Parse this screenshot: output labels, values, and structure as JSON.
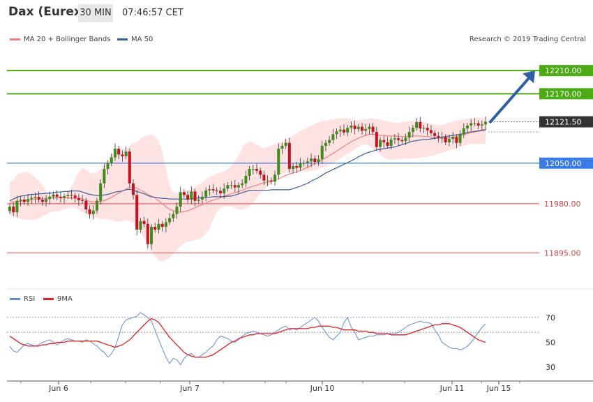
{
  "header": {
    "title": "Dax (Eurex)",
    "timeframe": "30 MIN",
    "time": "07:46:57 CET"
  },
  "legend": {
    "bollinger": {
      "label": "MA 20 + Bollinger Bands",
      "color": "#f08080"
    },
    "ma50": {
      "label": "MA 50",
      "color": "#3a5f9a"
    }
  },
  "copyright": "Research © 2019 Trading Central",
  "rsi_legend": {
    "rsi": "RSI",
    "ma": "9MA"
  },
  "colors": {
    "green": "#4caa14",
    "blue": "#3b7be8",
    "red": "#f07070",
    "candle_up": "#3d8c1c",
    "candle_down": "#c81020",
    "band": "#ffe2e2",
    "rsi": "#6688dd",
    "rsi_ma": "#e02020"
  },
  "chart_data": [
    {
      "type": "candlestick",
      "x_labels": [
        "Jun 6",
        "Jun 7",
        "Jun 10",
        "Jun 11",
        "Jun 15"
      ],
      "ylim": [
        11835,
        12250
      ],
      "levels": [
        {
          "value": 12210,
          "label": "12210.00",
          "color": "#4caa14"
        },
        {
          "value": 12170,
          "label": "12170.00",
          "color": "#4caa14"
        },
        {
          "value": 12050,
          "label": "12050.00",
          "color": "#3b7be8"
        },
        {
          "value": 11980,
          "label": "11980.00",
          "color": "#f07070"
        },
        {
          "value": 11895,
          "label": "11895.00",
          "color": "#f07070"
        }
      ],
      "last_price": {
        "value": 12121.5,
        "label": "12121.50"
      },
      "projection": {
        "from": 12121.5,
        "to": 12210
      },
      "close": [
        11975,
        11965,
        11985,
        11987,
        11983,
        11988,
        11990,
        11992,
        11987,
        11983,
        11988,
        11992,
        11996,
        11992,
        11990,
        11993,
        11995,
        11994,
        11990,
        11986,
        11985,
        11970,
        11962,
        11968,
        11985,
        12015,
        12040,
        12050,
        12060,
        12075,
        12065,
        12062,
        12070,
        12015,
        11995,
        11935,
        11950,
        11945,
        11910,
        11940,
        11935,
        11945,
        11940,
        11948,
        11955,
        11962,
        11975,
        12000,
        11995,
        11987,
        12001,
        11985,
        11987,
        11992,
        12003,
        12005,
        12003,
        12002,
        11998,
        12006,
        12012,
        12012,
        12008,
        12012,
        12015,
        12028,
        12040,
        12040,
        12037,
        12030,
        12020,
        12020,
        12018,
        12030,
        12075,
        12080,
        12085,
        12040,
        12045,
        12042,
        12050,
        12050,
        12053,
        12058,
        12052,
        12057,
        12080,
        12085,
        12090,
        12100,
        12105,
        12108,
        12103,
        12111,
        12115,
        12109,
        12113,
        12106,
        12109,
        12113,
        12104,
        12078,
        12090,
        12086,
        12080,
        12091,
        12093,
        12090,
        12088,
        12094,
        12104,
        12111,
        12121,
        12110,
        12111,
        12107,
        12102,
        12097,
        12094,
        12095,
        12086,
        12092,
        12095,
        12085,
        12100,
        12110,
        12115,
        12119,
        12119,
        12115,
        12117,
        12121.5
      ],
      "ma20_upper": [
        12017,
        12020,
        12031,
        12033,
        12035,
        12034,
        12031,
        12025,
        12020,
        12012,
        12002,
        11993,
        11995,
        11993,
        11992,
        11994,
        11999,
        12009,
        12021,
        12034,
        12042,
        12039,
        12034,
        12032,
        12034,
        12040,
        12048,
        12056,
        12065,
        12070,
        12073,
        12075,
        12076,
        12080,
        12084,
        12087,
        12092,
        12096,
        12098,
        12100,
        12097,
        12088,
        12070,
        12040,
        12010,
        12001,
        11997,
        11999,
        12001,
        12003,
        12005,
        12009,
        12013,
        12017,
        12021,
        12025,
        12029,
        12032,
        12034,
        12036,
        12040,
        12046,
        12054,
        12064,
        12076,
        12084,
        12088,
        12086,
        12082,
        12078,
        12076,
        12078,
        12080,
        12083,
        12086,
        12088,
        12091,
        12094,
        12098,
        12102,
        12106,
        12109,
        12112,
        12115,
        12118,
        12121,
        12122,
        12123,
        12125,
        12126,
        12127,
        12128,
        12128,
        12128,
        12126,
        12124,
        12124,
        12125,
        12126,
        12127,
        12127,
        12126,
        12125,
        12124,
        12122,
        12121,
        12120,
        12120,
        12121,
        12122,
        12123,
        12123,
        12123,
        12122,
        12121,
        12120,
        12118,
        12117,
        12116,
        12116,
        12118,
        12120,
        12122,
        12123,
        12125,
        12126,
        12127,
        12128,
        12128,
        12128,
        12128,
        12128
      ],
      "ma20_lower": [
        11960,
        11958,
        11955,
        11954,
        11953,
        11952,
        11952,
        11953,
        11955,
        11958,
        11961,
        11965,
        11966,
        11967,
        11968,
        11970,
        11972,
        11975,
        11973,
        11970,
        11965,
        11962,
        11959,
        11957,
        11955,
        11954,
        11953,
        11953,
        11951,
        11949,
        11949,
        11950,
        11951,
        11950,
        11947,
        11940,
        11930,
        11920,
        11910,
        11898,
        11890,
        11882,
        11880,
        11882,
        11887,
        11893,
        11900,
        11906,
        11912,
        11914,
        11915,
        11917,
        11919,
        11922,
        11928,
        11937,
        11952,
        11965,
        11973,
        11975,
        11975,
        11975,
        11973,
        11970,
        11970,
        11972,
        11976,
        11981,
        11990,
        11998,
        12004,
        12010,
        12015,
        12020,
        12028,
        12031,
        12033,
        12034,
        12035,
        12036,
        12036,
        12036,
        12036,
        12037,
        12038,
        12040,
        12042,
        12044,
        12047,
        12050,
        12054,
        12058,
        12062,
        12066,
        12070,
        12074,
        12078,
        12082,
        12082,
        12080,
        12075,
        12070,
        12065,
        12060,
        12057,
        12056,
        12056,
        12057,
        12057,
        12058,
        12058,
        12058,
        12058,
        12059,
        12060,
        12061,
        12062,
        12064,
        12066,
        12068,
        12070,
        12072,
        12074,
        12076,
        12078,
        12080,
        12082,
        12083,
        12083,
        12083,
        12083,
        12083
      ],
      "ma50": [
        11985,
        11988,
        11991,
        11993,
        11994,
        11995,
        11996,
        11996,
        11997,
        11997,
        11998,
        11998,
        11999,
        12000,
        12000,
        12001,
        12001,
        12002,
        12002,
        12002,
        12000,
        11998,
        11996,
        11995,
        11994,
        11994,
        11995,
        11996,
        11998,
        12000,
        12001,
        12002,
        12004,
        12005,
        12003,
        12001,
        11999,
        11997,
        11994,
        11992,
        11991,
        11990,
        11989,
        11989,
        11988,
        11988,
        11988,
        11988,
        11988,
        11988,
        11988,
        11989,
        11990,
        11990,
        11991,
        11991,
        11992,
        11992,
        11992,
        11992,
        11993,
        11993,
        11995,
        11997,
        11999,
        12001,
        12003,
        12003,
        12003,
        12003,
        12003,
        12003,
        12004,
        12004,
        12004,
        12004,
        12004,
        12004,
        12006,
        12008,
        12010,
        12013,
        12015,
        12019,
        12022,
        12025,
        12029,
        12033,
        12036,
        12039,
        12042,
        12045,
        12048,
        12051,
        12054,
        12057,
        12061,
        12064,
        12067,
        12069,
        12071,
        12073,
        12074,
        12075,
        12076,
        12077,
        12078,
        12080,
        12082,
        12084,
        12086,
        12088,
        12089,
        12090,
        12091,
        12091,
        12092,
        12093,
        12094,
        12095,
        12096,
        12097,
        12098,
        12099,
        12100,
        12101,
        12103,
        12104,
        12105,
        12106,
        12107,
        12108
      ],
      "ma20": [
        11983,
        11983,
        11984,
        11984,
        11985,
        11986,
        11987,
        11988,
        11988,
        11989,
        11989,
        11990,
        11990,
        11990,
        11990,
        11990,
        11990,
        11990,
        11989,
        11989,
        11988,
        11986,
        11984,
        11983,
        11983,
        11984,
        11985,
        11988,
        11991,
        11995,
        11998,
        12002,
        12005,
        12008,
        12008,
        12007,
        12003,
        12000,
        11996,
        11993,
        11990,
        11985,
        11980,
        11975,
        11970,
        11968,
        11966,
        11965,
        11966,
        11968,
        11970,
        11973,
        11976,
        11978,
        11981,
        11984,
        11986,
        11988,
        11990,
        11993,
        11995,
        11997,
        11999,
        12001,
        12003,
        12006,
        12008,
        12010,
        12012,
        12014,
        12016,
        12017,
        12019,
        12021,
        12023,
        12026,
        12029,
        12031,
        12033,
        12035,
        12037,
        12040,
        12043,
        12046,
        12049,
        12052,
        12056,
        12059,
        12063,
        12067,
        12071,
        12075,
        12079,
        12083,
        12087,
        12090,
        12093,
        12096,
        12098,
        12100,
        12100,
        12099,
        12098,
        12098,
        12097,
        12097,
        12097,
        12096,
        12096,
        12096,
        12096,
        12097,
        12097,
        12097,
        12096,
        12096,
        12095,
        12094,
        12093,
        12093,
        12093,
        12094,
        12095,
        12096,
        12098,
        12099,
        12101,
        12103,
        12104,
        12105,
        12106,
        12106
      ]
    },
    {
      "type": "line",
      "title": "RSI",
      "ylim": [
        20,
        80
      ],
      "ticks": [
        30,
        50,
        70
      ],
      "dotted_levels": [
        70,
        58
      ],
      "series": [
        {
          "name": "RSI",
          "values": [
            47,
            43,
            42,
            45,
            48,
            49,
            48,
            47,
            48,
            50,
            51,
            52,
            50,
            48,
            50,
            52,
            53,
            52,
            51,
            51,
            50,
            52,
            51,
            49,
            47,
            44,
            42,
            38,
            41,
            46,
            55,
            64,
            68,
            69,
            70,
            71,
            74,
            72,
            70,
            67,
            60,
            52,
            45,
            38,
            33,
            37,
            36,
            32,
            37,
            40,
            41,
            38,
            38,
            40,
            42,
            45,
            47,
            52,
            55,
            54,
            53,
            51,
            50,
            52,
            55,
            57,
            58,
            59,
            58,
            57,
            56,
            55,
            56,
            58,
            60,
            62,
            63,
            60,
            61,
            60,
            62,
            64,
            66,
            68,
            70,
            67,
            62,
            58,
            54,
            52,
            55,
            58,
            66,
            70,
            62,
            58,
            52,
            53,
            54,
            55,
            55,
            56,
            56,
            56,
            57,
            57,
            57,
            58,
            60,
            62,
            64,
            65,
            66,
            67,
            66,
            66,
            65,
            60,
            56,
            50,
            48,
            46,
            45,
            45,
            44,
            45,
            47,
            50,
            54,
            58,
            62,
            65
          ]
        },
        {
          "name": "9MA",
          "values": [
            55,
            53,
            51,
            49,
            48,
            47,
            47,
            47,
            47,
            48,
            48,
            49,
            49,
            50,
            50,
            50,
            51,
            51,
            51,
            51,
            51,
            51,
            51,
            51,
            51,
            50,
            49,
            48,
            47,
            46,
            47,
            48,
            50,
            52,
            55,
            58,
            61,
            64,
            67,
            69,
            68,
            66,
            62,
            58,
            54,
            51,
            48,
            45,
            42,
            40,
            39,
            38,
            38,
            38,
            38,
            39,
            40,
            42,
            44,
            46,
            48,
            50,
            51,
            53,
            54,
            55,
            56,
            56,
            57,
            57,
            57,
            57,
            57,
            57,
            58,
            59,
            60,
            61,
            61,
            61,
            61,
            61,
            61,
            62,
            62,
            63,
            63,
            63,
            63,
            62,
            62,
            61,
            60,
            60,
            60,
            60,
            59,
            59,
            59,
            58,
            58,
            57,
            57,
            57,
            57,
            56,
            56,
            56,
            56,
            56,
            57,
            58,
            59,
            60,
            61,
            62,
            63,
            64,
            64,
            65,
            65,
            65,
            64,
            63,
            62,
            60,
            58,
            56,
            54,
            52,
            51,
            50
          ]
        }
      ]
    }
  ]
}
